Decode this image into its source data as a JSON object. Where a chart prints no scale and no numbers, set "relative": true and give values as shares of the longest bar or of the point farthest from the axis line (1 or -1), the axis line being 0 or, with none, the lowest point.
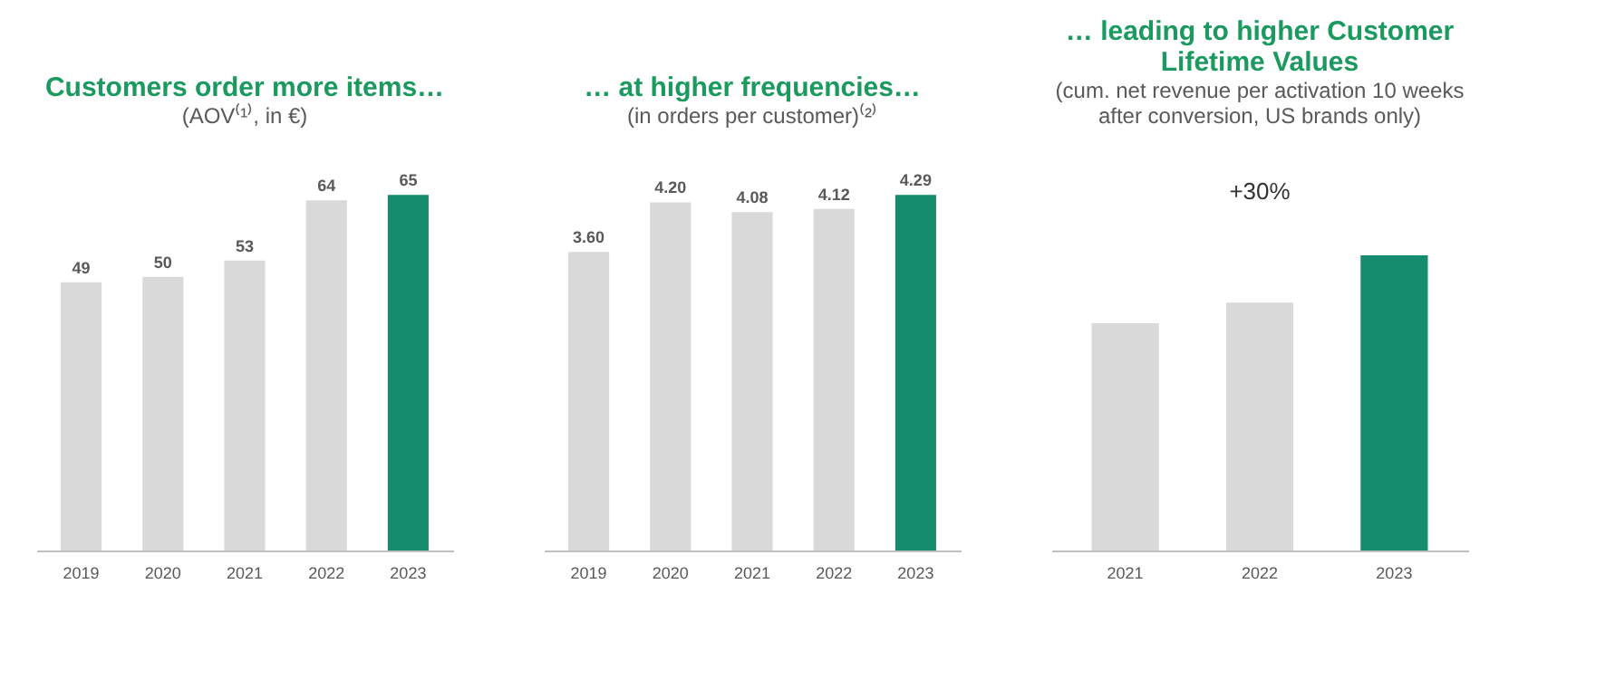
{
  "chart_data": [
    {
      "type": "bar",
      "title": "Customers order more items…",
      "subtitle": "(AOV⁽¹⁾, in €)",
      "categories": [
        "2019",
        "2020",
        "2021",
        "2022",
        "2023"
      ],
      "values": [
        49,
        50,
        53,
        64,
        65
      ],
      "colors": [
        "#d9d9d9",
        "#d9d9d9",
        "#d9d9d9",
        "#d9d9d9",
        "#158c6e"
      ],
      "data_labels": true
    },
    {
      "type": "bar",
      "title": "… at higher frequencies…",
      "subtitle": "(in orders per customer)⁽²⁾",
      "categories": [
        "2019",
        "2020",
        "2021",
        "2022",
        "2023"
      ],
      "values": [
        3.6,
        4.2,
        4.08,
        4.12,
        4.29
      ],
      "value_labels": [
        "3.60",
        "4.20",
        "4.08",
        "4.12",
        "4.29"
      ],
      "colors": [
        "#d9d9d9",
        "#d9d9d9",
        "#d9d9d9",
        "#d9d9d9",
        "#158c6e"
      ]
    },
    {
      "type": "bar",
      "title": "… leading to higher Customer Lifetime Values",
      "subtitle": "(cum. net revenue per activation 10 weeks after conversion, US brands only)",
      "categories": [
        "2021",
        "2022",
        "2023"
      ],
      "values": [
        0.77,
        0.84,
        1
      ],
      "colors": [
        "#d9d9d9",
        "#d9d9d9",
        "#158c6e"
      ],
      "relative": true,
      "annotations": [
        "+30%"
      ]
    }
  ]
}
